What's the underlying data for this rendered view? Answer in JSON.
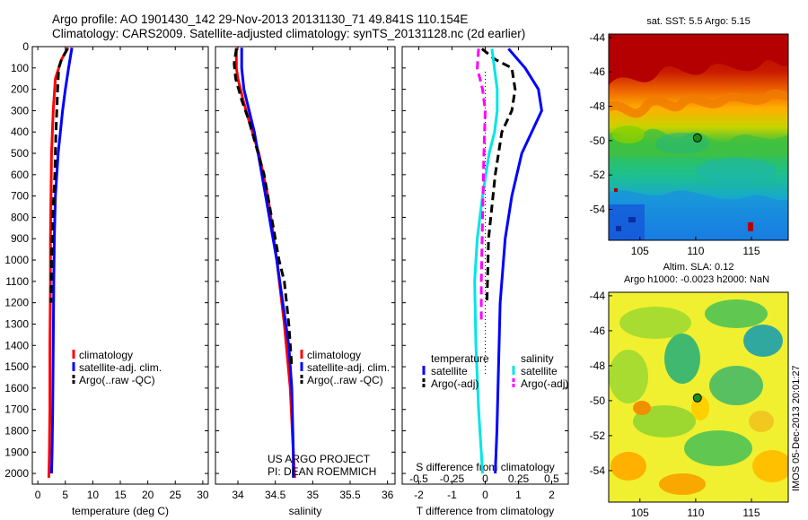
{
  "header": {
    "line1": "Argo profile: AO 1901430_142 29-Nov-2013 20131130_71 49.841S 110.154E",
    "line2": "Climatology: CARS2009. Satellite-adjusted climatology: synTS_20131128.nc (2d earlier)"
  },
  "colors": {
    "climatology": "#ff0000",
    "satellite": "#0000ff",
    "argo": "#000000",
    "sal_satellite": "#00e5e5",
    "sal_argo": "#ff00ff"
  },
  "chart_data": [
    {
      "id": "temperature",
      "type": "line",
      "xlabel": "temperature (deg C)",
      "ylabel": "",
      "xlim": [
        -1,
        31
      ],
      "ylim": [
        2050,
        0
      ],
      "xticks": [
        0,
        5,
        10,
        15,
        20,
        25,
        30
      ],
      "yticks": [
        0,
        100,
        200,
        300,
        400,
        500,
        600,
        700,
        800,
        900,
        1000,
        1100,
        1200,
        1300,
        1400,
        1500,
        1600,
        1700,
        1800,
        1900,
        2000
      ],
      "legend": [
        "climatology",
        "satellite-adj. clim.",
        "Argo(..raw -QC)"
      ],
      "legend_position": "bottom-right",
      "series": [
        {
          "name": "climatology",
          "color": "#ff0000",
          "style": "solid",
          "x": [
            5.5,
            4.3,
            3.2,
            2.8,
            2.5,
            2.4,
            2.3,
            2.3,
            2.2,
            2.2,
            2.1,
            2.0
          ],
          "y": [
            5,
            60,
            150,
            300,
            500,
            700,
            900,
            1100,
            1400,
            1700,
            1900,
            2020
          ]
        },
        {
          "name": "satellite-adj. clim.",
          "color": "#0000ff",
          "style": "solid",
          "x": [
            6.2,
            5.6,
            5.0,
            4.5,
            3.7,
            3.2,
            3.0,
            2.9,
            2.8,
            2.7,
            2.6,
            2.5
          ],
          "y": [
            5,
            100,
            200,
            300,
            500,
            700,
            900,
            1100,
            1400,
            1700,
            1900,
            2000
          ]
        },
        {
          "name": "Argo(..raw -QC)",
          "color": "#000000",
          "style": "dash",
          "x": [
            5.4,
            4.3,
            3.8,
            3.6,
            3.3,
            3.1,
            2.7,
            2.5,
            2.4
          ],
          "y": [
            10,
            60,
            100,
            200,
            400,
            600,
            800,
            1000,
            1200
          ]
        }
      ]
    },
    {
      "id": "salinity",
      "type": "line",
      "xlabel": "salinity",
      "ylabel": "",
      "xlim": [
        33.7,
        36.1
      ],
      "ylim": [
        2050,
        0
      ],
      "xticks": [
        34,
        34.5,
        35,
        35.5,
        36
      ],
      "xticklabels": [
        "34",
        "34.5",
        "35",
        "35.5",
        "36"
      ],
      "legend": [
        "climatology",
        "satellite-adj. clim.",
        "Argo(..raw -QC)"
      ],
      "legend_position": "bottom-right",
      "annotation": [
        "US ARGO PROJECT",
        "PI: DEAN ROEMMICH"
      ],
      "series": [
        {
          "name": "climatology",
          "color": "#ff0000",
          "style": "solid",
          "x": [
            33.98,
            33.98,
            34.0,
            34.07,
            34.15,
            34.28,
            34.4,
            34.52,
            34.62,
            34.7,
            34.74,
            34.76
          ],
          "y": [
            5,
            100,
            150,
            250,
            350,
            500,
            700,
            1000,
            1300,
            1600,
            1900,
            2020
          ]
        },
        {
          "name": "satellite-adj. clim.",
          "color": "#0000ff",
          "style": "solid",
          "x": [
            34.05,
            34.05,
            34.08,
            34.15,
            34.22,
            34.32,
            34.42,
            34.52,
            34.6,
            34.68,
            34.72,
            34.74,
            34.74
          ],
          "y": [
            5,
            100,
            200,
            300,
            400,
            600,
            800,
            1000,
            1200,
            1400,
            1600,
            1900,
            2020
          ]
        },
        {
          "name": "Argo(..raw -QC)",
          "color": "#000000",
          "style": "dash",
          "x": [
            33.98,
            33.95,
            33.97,
            34.05,
            34.15,
            34.27,
            34.35,
            34.45,
            34.55,
            34.62,
            34.68,
            34.72
          ],
          "y": [
            10,
            80,
            150,
            250,
            350,
            500,
            600,
            800,
            1000,
            1100,
            1300,
            1500
          ]
        }
      ]
    },
    {
      "id": "difference",
      "type": "line",
      "xlabel": "T difference from climatology",
      "x2label": "S difference from climatology",
      "ylabel": "",
      "xlim": [
        -2.5,
        2.5
      ],
      "x2lim": [
        -0.625,
        0.625
      ],
      "ylim": [
        2050,
        0
      ],
      "xticks": [
        -2,
        -1,
        0,
        1,
        2
      ],
      "x2ticks": [
        -0.5,
        -0.25,
        0,
        0.25,
        0.5
      ],
      "x2ticklabels": [
        "-0.5",
        "-0.25",
        "0",
        "0.25",
        "0.5"
      ],
      "legend_temperature": {
        "title": "temperature",
        "items": [
          "satellite",
          "Argo(-adj)"
        ]
      },
      "legend_salinity": {
        "title": "salinity",
        "items": [
          "satellite",
          "Argo(-adj)"
        ]
      },
      "legend_position": "bottom-center",
      "series": [
        {
          "name": "T satellite",
          "axis": "T",
          "color": "#0000ff",
          "style": "solid",
          "x": [
            0.7,
            1.2,
            1.6,
            1.7,
            1.4,
            1.1,
            0.8,
            0.6,
            0.45,
            0.4,
            0.35,
            0.3
          ],
          "y": [
            10,
            100,
            200,
            300,
            400,
            500,
            700,
            900,
            1200,
            1500,
            1800,
            2000
          ]
        },
        {
          "name": "T Argo(-adj)",
          "axis": "T",
          "color": "#000000",
          "style": "dash",
          "x": [
            -0.1,
            0.3,
            0.8,
            0.9,
            0.8,
            0.5,
            0.3,
            0.1,
            0.05
          ],
          "y": [
            10,
            60,
            100,
            200,
            300,
            400,
            600,
            900,
            1200
          ]
        },
        {
          "name": "S satellite",
          "axis": "S",
          "color": "#00e5e5",
          "style": "solid",
          "x": [
            0.05,
            0.09,
            0.09,
            0.07,
            0.03,
            -0.02,
            -0.06,
            -0.08,
            -0.07,
            -0.05,
            -0.03,
            -0.02
          ],
          "y": [
            10,
            200,
            300,
            400,
            500,
            700,
            900,
            1100,
            1400,
            1700,
            1900,
            2000
          ]
        },
        {
          "name": "S Argo(-adj)",
          "axis": "S",
          "color": "#ff00ff",
          "style": "dash",
          "x": [
            -0.05,
            -0.06,
            -0.02,
            0.0,
            -0.01,
            -0.02,
            -0.03,
            -0.03
          ],
          "y": [
            10,
            100,
            200,
            300,
            500,
            800,
            1100,
            1300
          ]
        }
      ]
    },
    {
      "id": "sst-map",
      "type": "heatmap",
      "title": "sat. SST: 5.5 Argo: 5.15",
      "xlim": [
        102.2,
        118.3
      ],
      "ylim": [
        -55.8,
        -43.8
      ],
      "xticks": [
        105,
        110,
        115
      ],
      "yticks": [
        -44,
        -46,
        -48,
        -50,
        -52,
        -54
      ],
      "marker": {
        "lon": 110.154,
        "lat": -49.841
      }
    },
    {
      "id": "sla-map",
      "type": "heatmap",
      "title": "Altim. SLA: 0.12",
      "subtitle": "Argo h1000: -0.0023 h2000: NaN",
      "xlim": [
        102.2,
        118.3
      ],
      "ylim": [
        -55.8,
        -43.8
      ],
      "xticks": [
        105,
        110,
        115
      ],
      "yticks": [
        -44,
        -46,
        -48,
        -50,
        -52,
        -54
      ],
      "marker": {
        "lon": 110.154,
        "lat": -49.841
      }
    }
  ],
  "timestamp": "IMOS 05-Dec-2013 20:01:27"
}
